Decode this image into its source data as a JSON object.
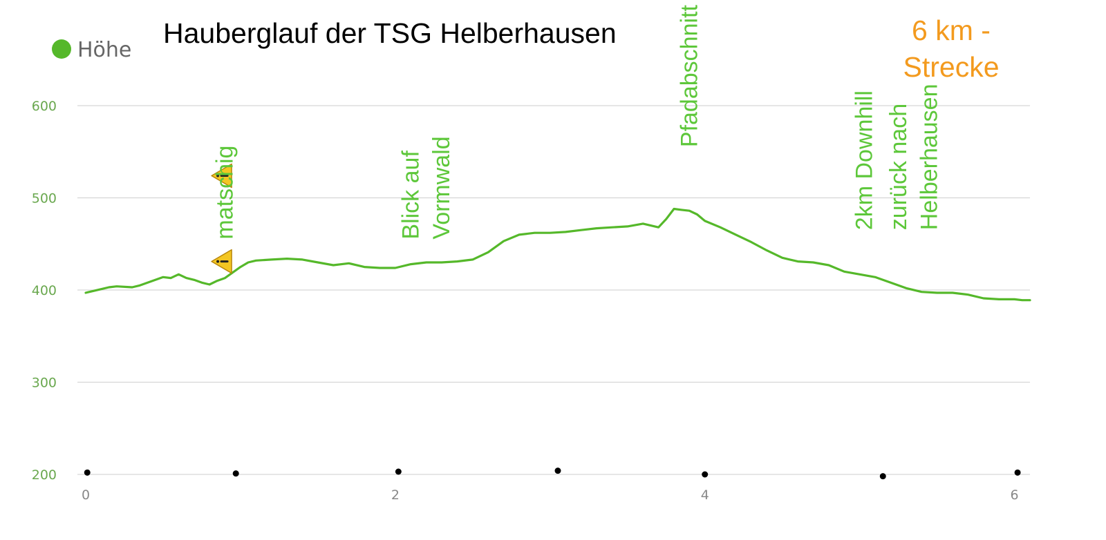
{
  "chart_data": {
    "type": "line",
    "title": "Hauberglauf der TSG Helberhausen",
    "subtitle_lines": [
      "6 km -",
      "Strecke"
    ],
    "legend": [
      {
        "name": "Höhe",
        "color": "#55b82a"
      }
    ],
    "legend_position": "top-left",
    "grid": true,
    "xlim": [
      0,
      6.1
    ],
    "ylim": [
      200,
      600
    ],
    "x_ticks": [
      "0",
      "2",
      "4",
      "6"
    ],
    "y_ticks": [
      "600",
      "500",
      "400",
      "300",
      "200"
    ],
    "series": [
      {
        "name": "Höhe",
        "color": "#55b82a",
        "x": [
          0,
          0.05,
          0.1,
          0.15,
          0.2,
          0.3,
          0.35,
          0.4,
          0.45,
          0.5,
          0.55,
          0.6,
          0.65,
          0.7,
          0.75,
          0.8,
          0.85,
          0.9,
          0.95,
          1.0,
          1.05,
          1.1,
          1.2,
          1.3,
          1.4,
          1.5,
          1.6,
          1.7,
          1.8,
          1.9,
          2.0,
          2.1,
          2.2,
          2.3,
          2.4,
          2.5,
          2.6,
          2.7,
          2.8,
          2.9,
          3.0,
          3.1,
          3.2,
          3.3,
          3.4,
          3.5,
          3.6,
          3.7,
          3.75,
          3.8,
          3.85,
          3.9,
          3.95,
          4.0,
          4.1,
          4.2,
          4.3,
          4.4,
          4.5,
          4.6,
          4.7,
          4.8,
          4.9,
          5.0,
          5.1,
          5.2,
          5.3,
          5.4,
          5.5,
          5.6,
          5.7,
          5.8,
          5.9,
          6.0,
          6.05,
          6.1
        ],
        "values": [
          397,
          399,
          401,
          403,
          404,
          403,
          405,
          408,
          411,
          414,
          413,
          417,
          413,
          411,
          408,
          406,
          410,
          413,
          419,
          425,
          430,
          432,
          433,
          434,
          433,
          430,
          427,
          429,
          425,
          424,
          424,
          428,
          430,
          430,
          431,
          433,
          441,
          453,
          460,
          462,
          462,
          463,
          465,
          467,
          468,
          469,
          472,
          468,
          477,
          488,
          487,
          486,
          482,
          475,
          468,
          460,
          452,
          443,
          435,
          431,
          430,
          427,
          420,
          417,
          414,
          408,
          402,
          398,
          397,
          397,
          395,
          391,
          390,
          390,
          389,
          389
        ]
      }
    ],
    "annotations": [
      {
        "text": "matschig",
        "x": 0.95,
        "y": 455
      },
      {
        "text": "Blick auf",
        "x": 2.15,
        "y": 455
      },
      {
        "text": "Vormwald",
        "x": 2.35,
        "y": 455
      },
      {
        "text": "Pfadabschnitt",
        "x": 3.95,
        "y": 555
      },
      {
        "text": "2km Downhill",
        "x": 5.08,
        "y": 465
      },
      {
        "text": "zurück nach",
        "x": 5.3,
        "y": 465
      },
      {
        "text": "Helberhausen",
        "x": 5.5,
        "y": 465
      }
    ],
    "warning_markers": [
      {
        "x": 0.88,
        "y": 524
      },
      {
        "x": 0.88,
        "y": 431
      }
    ],
    "markers": [
      {
        "x": 0.01,
        "y": 202
      },
      {
        "x": 0.97,
        "y": 201
      },
      {
        "x": 2.02,
        "y": 203
      },
      {
        "x": 3.05,
        "y": 204
      },
      {
        "x": 4.0,
        "y": 200
      },
      {
        "x": 5.15,
        "y": 198
      },
      {
        "x": 6.02,
        "y": 202
      }
    ]
  }
}
